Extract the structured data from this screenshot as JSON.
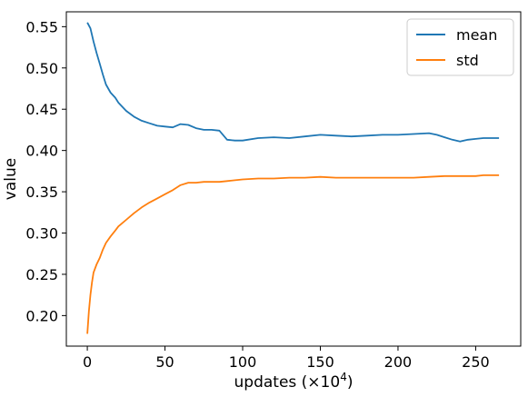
{
  "chart_data": {
    "type": "line",
    "xlabel": "updates (×10",
    "xlabel_exponent": "4",
    "xlabel_suffix": ")",
    "ylabel": "value",
    "xlim": [
      -13.5,
      279
    ],
    "ylim": [
      0.163,
      0.568
    ],
    "x_ticks": [
      0,
      50,
      100,
      150,
      200,
      250
    ],
    "x_tick_labels": [
      "0",
      "50",
      "100",
      "150",
      "200",
      "250"
    ],
    "y_ticks": [
      0.2,
      0.25,
      0.3,
      0.35,
      0.4,
      0.45,
      0.5,
      0.55
    ],
    "y_tick_labels": [
      "0.20",
      "0.25",
      "0.30",
      "0.35",
      "0.40",
      "0.45",
      "0.50",
      "0.55"
    ],
    "grid": false,
    "legend_position": "top-right",
    "series": [
      {
        "name": "mean",
        "color": "#1f77b4",
        "x": [
          0,
          2,
          4,
          6,
          8,
          10,
          12,
          15,
          18,
          20,
          25,
          30,
          35,
          40,
          45,
          50,
          55,
          60,
          65,
          70,
          75,
          80,
          85,
          90,
          95,
          100,
          110,
          120,
          130,
          140,
          150,
          160,
          170,
          180,
          190,
          200,
          210,
          220,
          225,
          230,
          235,
          240,
          245,
          250,
          255,
          260,
          265
        ],
        "y": [
          0.555,
          0.548,
          0.532,
          0.518,
          0.505,
          0.492,
          0.48,
          0.47,
          0.464,
          0.458,
          0.448,
          0.441,
          0.436,
          0.433,
          0.43,
          0.429,
          0.428,
          0.432,
          0.431,
          0.427,
          0.425,
          0.425,
          0.424,
          0.413,
          0.412,
          0.412,
          0.415,
          0.416,
          0.415,
          0.417,
          0.419,
          0.418,
          0.417,
          0.418,
          0.419,
          0.419,
          0.42,
          0.421,
          0.419,
          0.416,
          0.413,
          0.411,
          0.413,
          0.414,
          0.415,
          0.415,
          0.415
        ]
      },
      {
        "name": "std",
        "color": "#ff7f0e",
        "x": [
          0,
          1,
          2,
          3,
          4,
          6,
          8,
          10,
          12,
          15,
          18,
          20,
          25,
          30,
          35,
          40,
          45,
          50,
          55,
          60,
          65,
          70,
          75,
          80,
          85,
          90,
          95,
          100,
          110,
          120,
          130,
          140,
          150,
          160,
          170,
          180,
          190,
          200,
          210,
          220,
          230,
          240,
          250,
          255,
          260,
          265
        ],
        "y": [
          0.178,
          0.205,
          0.225,
          0.24,
          0.252,
          0.262,
          0.27,
          0.28,
          0.288,
          0.296,
          0.303,
          0.308,
          0.316,
          0.324,
          0.331,
          0.337,
          0.342,
          0.347,
          0.352,
          0.358,
          0.361,
          0.361,
          0.362,
          0.362,
          0.362,
          0.363,
          0.364,
          0.365,
          0.366,
          0.366,
          0.367,
          0.367,
          0.368,
          0.367,
          0.367,
          0.367,
          0.367,
          0.367,
          0.367,
          0.368,
          0.369,
          0.369,
          0.369,
          0.37,
          0.37,
          0.37
        ]
      }
    ]
  }
}
